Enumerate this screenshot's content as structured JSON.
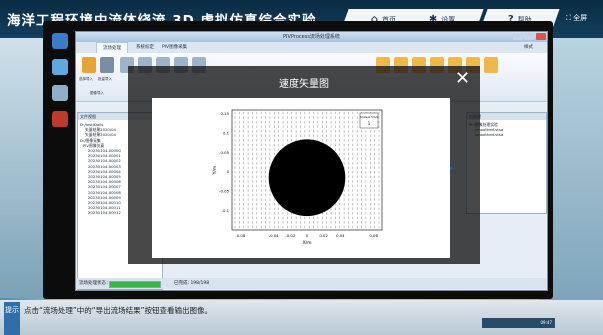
{
  "app": {
    "title": "海洋工程环境中流体绕流 3D 虚拟仿真综合实验"
  },
  "nav": {
    "home": "首页",
    "settings": "设置",
    "help": "帮助",
    "fullscreen": "全屏"
  },
  "window": {
    "title": "PIVProcess流场处理系统"
  },
  "ribbon": {
    "tabs": [
      "流场处理",
      "系统标定",
      "PIV图像采集"
    ],
    "style_label": "样式",
    "items": [
      "选择导入",
      "批量导入"
    ],
    "group_label": "图像导入"
  },
  "left_panel": {
    "title": "文件视图",
    "tree": [
      "D:/test/Dalls",
      "矢量结果2020/04",
      "矢量结果2020/04",
      "D:/图像采集",
      "PIV图像仿真",
      "20230104-00000",
      "20230104-00001",
      "20230104-00002",
      "20230104-00003",
      "20230104-00004",
      "20230104-00005",
      "20230104-00006",
      "20230104-00007",
      "20230104-00008",
      "20230104-00009",
      "20230104-00010",
      "20230104-00011",
      "20230104-00012"
    ]
  },
  "right_panel": {
    "title": "后处理",
    "tree": [
      "PIV图像处理实验",
      "smoothed.vtsa",
      "smoothed.vtsa"
    ]
  },
  "status": {
    "label": "流场处理状态：",
    "progress": 1.0,
    "completed": "已完成: 198/198"
  },
  "overlay": {
    "title": "速度矢量图",
    "close": "✕",
    "prev": "◀",
    "next": "▶"
  },
  "chart_data": {
    "type": "scatter",
    "title": "",
    "xlabel": "X/m",
    "ylabel": "Y/m",
    "xlim": [
      -0.09,
      0.09
    ],
    "ylim": [
      -0.15,
      0.16
    ],
    "x_ticks": [
      "-0.08",
      "-0.04",
      "-0.02",
      "0",
      "0.02",
      "0.04",
      "0.08"
    ],
    "y_ticks": [
      "0.15",
      "0.1",
      "0.05",
      "0",
      "-0.05",
      "-0.1"
    ],
    "legend": {
      "label": "Scale:0.5m/s",
      "value": "1"
    },
    "cylinder": {
      "x": 0.0,
      "y": -0.015,
      "diameter": 0.02
    }
  },
  "hint": {
    "badge": "提示",
    "text": "点击“流场处理”中的“导出流场结果”按钮查看输出图像。"
  },
  "taskbar": {
    "time": "09:47"
  },
  "colors": {
    "accent": "#2d5fa0",
    "progress": "#39b54a",
    "topbar": "#0a2b43"
  }
}
